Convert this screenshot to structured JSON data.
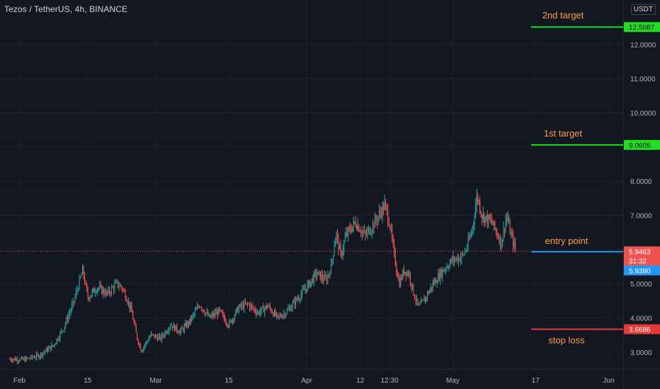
{
  "header": {
    "symbol_title": "Tezos / TetherUS, 4h, BINANCE",
    "currency": "USDT"
  },
  "colors": {
    "background": "#131722",
    "up": "#26a69a",
    "down": "#ef5350",
    "grid": "#1e222d",
    "target_line": "#22dd22",
    "entry_line": "#2196f3",
    "stop_line": "#e53935",
    "annotation_text": "#ff9f43",
    "axis_text": "#b2b5be"
  },
  "chart_data": {
    "type": "candlestick",
    "title": "Tezos / TetherUS, 4h, BINANCE",
    "y_axis": {
      "ticks": [
        "3.0000",
        "4.0000",
        "5.0000",
        "6.0000",
        "7.0000",
        "8.0000",
        "9.0000",
        "10.0000",
        "11.0000",
        "12.0000"
      ],
      "tick_values": [
        3,
        4,
        5,
        6,
        7,
        8,
        9,
        10,
        11,
        12
      ],
      "range": [
        2.5,
        13.3
      ]
    },
    "x_axis": {
      "ticks": [
        "Feb",
        "15",
        "Mar",
        "15",
        "Apr",
        "12",
        "12:30",
        "May",
        "17",
        "Jun"
      ],
      "tick_positions": [
        2.0,
        16.0,
        30.0,
        45.0,
        61.0,
        72.0,
        78.0,
        91.0,
        108.0,
        123.0
      ],
      "range": [
        -2.0,
        126.0
      ]
    },
    "close_path": [
      [
        0,
        2.8
      ],
      [
        3,
        2.78
      ],
      [
        6,
        2.9
      ],
      [
        9,
        3.2
      ],
      [
        11,
        3.7
      ],
      [
        13,
        4.4
      ],
      [
        15,
        5.4
      ],
      [
        16,
        4.6
      ],
      [
        18,
        4.9
      ],
      [
        20,
        4.7
      ],
      [
        22,
        5.0
      ],
      [
        23,
        4.9
      ],
      [
        24,
        4.6
      ],
      [
        25,
        4.2
      ],
      [
        26,
        3.5
      ],
      [
        27,
        3.05
      ],
      [
        29,
        3.5
      ],
      [
        31,
        3.4
      ],
      [
        33,
        3.8
      ],
      [
        35,
        3.6
      ],
      [
        37,
        3.9
      ],
      [
        39,
        4.4
      ],
      [
        41,
        4.0
      ],
      [
        43,
        4.2
      ],
      [
        45,
        3.8
      ],
      [
        47,
        4.3
      ],
      [
        49,
        4.4
      ],
      [
        51,
        4.15
      ],
      [
        53,
        4.35
      ],
      [
        55,
        4.0
      ],
      [
        57,
        4.2
      ],
      [
        59,
        4.55
      ],
      [
        61,
        4.9
      ],
      [
        63,
        5.3
      ],
      [
        65,
        5.1
      ],
      [
        66,
        5.5
      ],
      [
        67,
        6.5
      ],
      [
        68,
        5.8
      ],
      [
        69,
        6.4
      ],
      [
        71,
        6.8
      ],
      [
        73,
        6.4
      ],
      [
        75,
        6.8
      ],
      [
        77,
        7.3
      ],
      [
        78,
        6.8
      ],
      [
        79,
        5.8
      ],
      [
        80,
        5.0
      ],
      [
        81,
        5.4
      ],
      [
        82,
        5.3
      ],
      [
        83,
        4.7
      ],
      [
        84,
        4.3
      ],
      [
        85,
        4.5
      ],
      [
        87,
        5.0
      ],
      [
        89,
        5.4
      ],
      [
        91,
        5.7
      ],
      [
        93,
        5.8
      ],
      [
        94,
        6.1
      ],
      [
        95,
        6.6
      ],
      [
        96,
        7.6
      ],
      [
        97,
        7.0
      ],
      [
        99,
        6.8
      ],
      [
        100,
        6.5
      ],
      [
        101,
        6.2
      ],
      [
        102,
        7.0
      ],
      [
        103,
        6.4
      ],
      [
        104,
        5.94
      ]
    ],
    "horizontal_levels": [
      {
        "label": "2nd target",
        "value": 12.5087,
        "value_label": "12.5087",
        "role": "target"
      },
      {
        "label": "1st target",
        "value": 9.0605,
        "value_label": "9.0605",
        "role": "target"
      },
      {
        "label": "entry point",
        "value": 5.938,
        "value_label": "5.9380",
        "role": "entry"
      },
      {
        "label": "stop loss",
        "value": 3.6686,
        "value_label": "3.6686",
        "role": "stop"
      }
    ],
    "current_price": {
      "value": 5.9463,
      "value_label": "5.9463",
      "countdown": "31:32"
    },
    "grid": true
  }
}
